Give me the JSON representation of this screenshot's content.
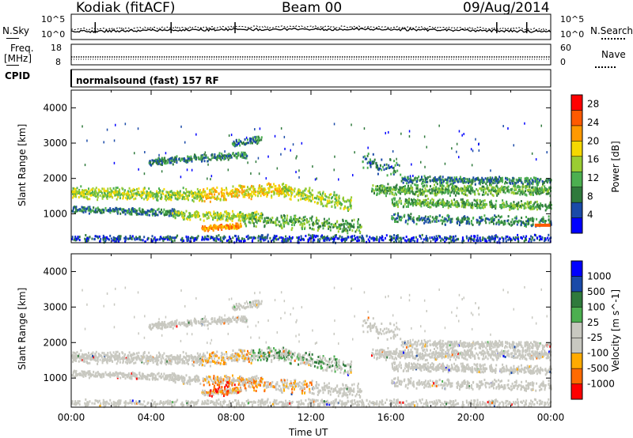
{
  "header": {
    "station": "Kodiak (fitACF)",
    "beam": "Beam 00",
    "date": "09/Aug/2014"
  },
  "side_labels": {
    "nsky": "N.Sky",
    "nsearch": "N.Search",
    "freq": "Freq.",
    "mhz": "[MHz]",
    "nave": "Nave",
    "cpid": "CPID"
  },
  "noise_axis": {
    "top": "10^5",
    "bottom": "10^0"
  },
  "freq_axis": {
    "top": "18",
    "bottom": "8"
  },
  "nave_axis": {
    "top": "60",
    "bottom": "0"
  },
  "cpid_text": "normalsound (fast) 157 RF",
  "colors": {
    "power_scale": [
      "#0000ff",
      "#1a4aa8",
      "#2f7a3c",
      "#4caf50",
      "#9acd32",
      "#f5d800",
      "#ff9900",
      "#ff5a00",
      "#ff0000"
    ],
    "velocity_scale": [
      "#ff0000",
      "#ff6a00",
      "#ffaa00",
      "#c8c8c0",
      "#c8c8c0",
      "#4caf50",
      "#2f7a3c",
      "#1a4aa8",
      "#0000ff"
    ],
    "gray_scatter": "#c8c8c0"
  },
  "chart_data": [
    {
      "type": "heatmap",
      "title": "",
      "xlabel": "Time UT",
      "ylabel": "Slant Range [km]",
      "xlim": [
        "00:00",
        "00:00"
      ],
      "x_ticks": [
        "00:00",
        "04:00",
        "08:00",
        "12:00",
        "16:00",
        "20:00",
        "00:00"
      ],
      "ylim": [
        180,
        4500
      ],
      "y_ticks": [
        1000,
        2000,
        3000,
        4000
      ],
      "colorbar": {
        "label": "Power [dB]",
        "ticks": [
          4,
          8,
          12,
          16,
          20,
          24,
          28
        ],
        "range": [
          0,
          30
        ]
      }
    },
    {
      "type": "heatmap",
      "title": "",
      "xlabel": "Time UT",
      "ylabel": "Slant Range [km]",
      "xlim": [
        "00:00",
        "00:00"
      ],
      "x_ticks": [
        "00:00",
        "04:00",
        "08:00",
        "12:00",
        "16:00",
        "20:00",
        "00:00"
      ],
      "ylim": [
        180,
        4500
      ],
      "y_ticks": [
        1000,
        2000,
        3000,
        4000
      ],
      "colorbar": {
        "label": "Velocity [m s^-1]",
        "ticks": [
          -1000,
          -500,
          -100,
          -25,
          25,
          100,
          500,
          1000
        ]
      }
    }
  ],
  "xlabel": "Time UT"
}
